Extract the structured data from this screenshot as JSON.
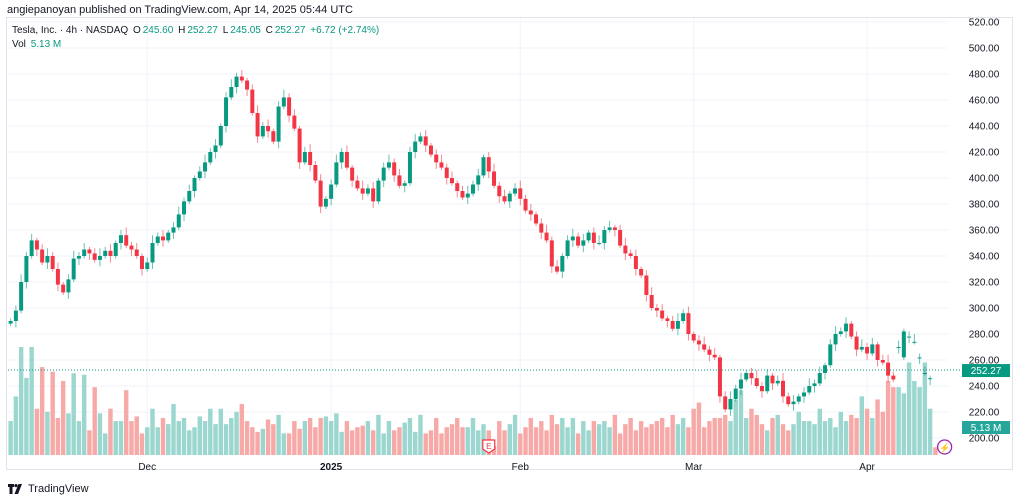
{
  "header": {
    "published": "angiepanoyan published on TradingView.com, Apr 14, 2025 05:44 UTC"
  },
  "legend": {
    "symbol": "Tesla, Inc. · 4h · NASDAQ",
    "o_label": "O",
    "o_value": "245.60",
    "h_label": "H",
    "h_value": "252.27",
    "l_label": "L",
    "l_value": "245.05",
    "c_label": "C",
    "c_value": "252.27",
    "change": "+6.72 (+2.74%)",
    "vol_label": "Vol",
    "vol_value": "5.13 M"
  },
  "footer": {
    "logo_text": "TradingView"
  },
  "colors": {
    "up": "#089981",
    "down": "#f23645",
    "up_vol": "#9bd6cf",
    "down_vol": "#f7a9a7",
    "grid": "#f0f3fa",
    "price_badge": "#089981",
    "vol_badge": "#26a69a",
    "earnings": "#f23645",
    "dividend": "#9c27b0"
  },
  "chart_data": {
    "type": "candlestick",
    "title": "Tesla, Inc. · 4h · NASDAQ",
    "ylabel": "",
    "ylim": [
      185,
      525
    ],
    "y_ticks": [
      "520.00",
      "500.00",
      "480.00",
      "460.00",
      "440.00",
      "420.00",
      "400.00",
      "380.00",
      "360.00",
      "340.00",
      "320.00",
      "300.00",
      "280.00",
      "260.00",
      "240.00",
      "220.00",
      "200.00"
    ],
    "x_ticks": [
      {
        "label": "Dec",
        "index": 26,
        "bold": false
      },
      {
        "label": "2025",
        "index": 61,
        "bold": true
      },
      {
        "label": "Feb",
        "index": 97,
        "bold": false
      },
      {
        "label": "Mar",
        "index": 130,
        "bold": false
      },
      {
        "label": "Apr",
        "index": 163,
        "bold": false
      }
    ],
    "last_price": "252.27",
    "last_price_value": 252.27,
    "last_volume": "5.13 M",
    "last_volume_value": 5.13,
    "events": [
      {
        "type": "earnings",
        "label": "E",
        "index": 91
      },
      {
        "type": "dividend-split",
        "label": "⚡",
        "index": 177
      }
    ],
    "volume_scale_max": 70,
    "closes": [
      290,
      298,
      320,
      340,
      352,
      345,
      335,
      340,
      330,
      318,
      312,
      322,
      338,
      340,
      345,
      342,
      337,
      340,
      344,
      340,
      350,
      356,
      348,
      345,
      340,
      330,
      335,
      350,
      355,
      352,
      358,
      362,
      372,
      382,
      390,
      400,
      405,
      412,
      420,
      425,
      440,
      462,
      470,
      478,
      475,
      468,
      450,
      432,
      440,
      436,
      428,
      455,
      462,
      448,
      438,
      412,
      420,
      410,
      398,
      378,
      384,
      395,
      412,
      420,
      408,
      398,
      392,
      388,
      392,
      382,
      398,
      408,
      412,
      402,
      394,
      396,
      420,
      428,
      432,
      425,
      418,
      412,
      408,
      400,
      396,
      390,
      385,
      388,
      395,
      402,
      416,
      405,
      394,
      386,
      382,
      388,
      392,
      384,
      375,
      372,
      365,
      358,
      352,
      332,
      328,
      340,
      352,
      355,
      348,
      352,
      358,
      350,
      350,
      360,
      362,
      360,
      348,
      342,
      340,
      330,
      325,
      310,
      300,
      298,
      292,
      290,
      284,
      290,
      296,
      280,
      275,
      272,
      268,
      264,
      262,
      232,
      222,
      230,
      238,
      245,
      250,
      246,
      240,
      236,
      248,
      242,
      244,
      232,
      226,
      228,
      232,
      235,
      240,
      242,
      250,
      256,
      272,
      280,
      282,
      288,
      278,
      268,
      270,
      265,
      272,
      260,
      258,
      248,
      245,
      270,
      282,
      278,
      274,
      262,
      250,
      246,
      252
    ],
    "opens": [
      288,
      290,
      298,
      320,
      340,
      352,
      345,
      335,
      340,
      330,
      318,
      312,
      322,
      338,
      340,
      345,
      342,
      337,
      340,
      344,
      340,
      350,
      356,
      348,
      345,
      340,
      330,
      335,
      350,
      355,
      352,
      358,
      362,
      372,
      382,
      390,
      400,
      405,
      412,
      420,
      425,
      440,
      462,
      470,
      478,
      475,
      468,
      450,
      432,
      440,
      436,
      428,
      455,
      462,
      448,
      438,
      412,
      420,
      410,
      398,
      378,
      384,
      395,
      412,
      420,
      408,
      398,
      392,
      388,
      392,
      382,
      398,
      408,
      412,
      402,
      394,
      396,
      420,
      428,
      432,
      425,
      418,
      412,
      408,
      400,
      396,
      390,
      385,
      388,
      395,
      402,
      416,
      405,
      394,
      386,
      382,
      388,
      392,
      384,
      375,
      372,
      365,
      358,
      352,
      332,
      328,
      340,
      352,
      355,
      348,
      352,
      358,
      350,
      350,
      360,
      362,
      360,
      348,
      342,
      340,
      330,
      325,
      310,
      300,
      298,
      292,
      290,
      284,
      290,
      296,
      280,
      275,
      272,
      268,
      264,
      262,
      232,
      222,
      230,
      238,
      245,
      250,
      246,
      240,
      236,
      248,
      242,
      244,
      232,
      226,
      228,
      232,
      235,
      240,
      242,
      250,
      256,
      272,
      280,
      282,
      288,
      278,
      268,
      270,
      265,
      272,
      260,
      258,
      248,
      270,
      262,
      278,
      274,
      262,
      250,
      245.6
    ],
    "volumes": [
      22,
      38,
      70,
      50,
      70,
      30,
      57,
      28,
      54,
      24,
      48,
      27,
      53,
      22,
      52,
      16,
      44,
      27,
      14,
      30,
      22,
      22,
      42,
      22,
      25,
      14,
      18,
      30,
      18,
      24,
      20,
      33,
      22,
      24,
      16,
      18,
      25,
      22,
      30,
      20,
      30,
      20,
      24,
      28,
      33,
      22,
      18,
      15,
      17,
      23,
      20,
      26,
      14,
      14,
      22,
      17,
      22,
      24,
      18,
      24,
      25,
      22,
      27,
      15,
      22,
      16,
      18,
      19,
      22,
      16,
      26,
      14,
      22,
      16,
      18,
      21,
      24,
      15,
      26,
      14,
      16,
      24,
      14,
      18,
      20,
      24,
      18,
      18,
      24,
      16,
      20,
      16,
      6,
      22,
      16,
      20,
      26,
      14,
      18,
      24,
      18,
      22,
      16,
      26,
      20,
      24,
      18,
      24,
      14,
      22,
      16,
      22,
      20,
      22,
      18,
      26,
      14,
      20,
      24,
      16,
      22,
      18,
      20,
      22,
      24,
      18,
      26,
      20,
      24,
      18,
      30,
      34,
      18,
      22,
      24,
      24,
      26,
      22,
      36,
      42,
      24,
      30,
      26,
      20,
      16,
      24,
      26,
      20,
      16,
      20,
      28,
      22,
      22,
      20,
      30,
      22,
      24,
      18,
      28,
      22,
      26,
      24,
      38,
      30,
      24,
      36,
      28,
      48,
      44,
      44,
      40,
      60,
      48,
      44,
      60,
      30,
      5
    ],
    "up_color": "#089981",
    "down_color": "#f23645"
  }
}
